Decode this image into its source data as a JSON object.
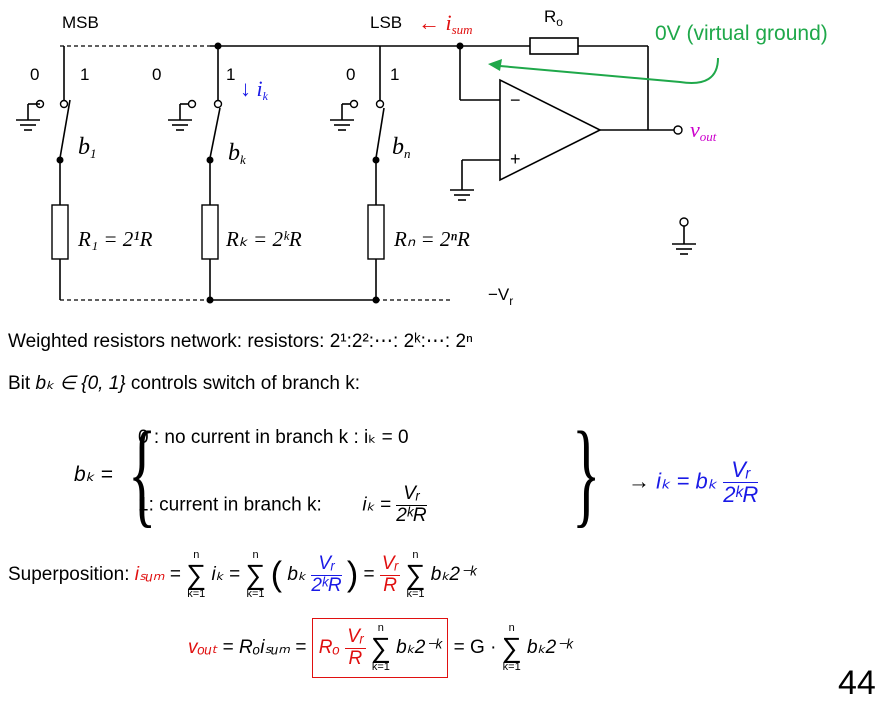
{
  "circuit": {
    "msb": "MSB",
    "lsb": "LSB",
    "i_sum_label": "← i",
    "i_sum_sub": "sum",
    "r0": "R",
    "r0_sub": "o",
    "virtual_ground": "0V (virtual ground)",
    "zero": "0",
    "one": "1",
    "ik_arrow": "↓ i",
    "ik_sub": "k",
    "b1": "b",
    "b1_sub": "1",
    "bk": "b",
    "bk_sub": "k",
    "bn": "b",
    "bn_sub": "n",
    "R1": "R₁ = 2¹R",
    "Rk": "Rₖ = 2ᵏR",
    "Rn": "Rₙ = 2ⁿR",
    "minus": "−",
    "plus": "+",
    "vout": "v",
    "vout_sub": "out",
    "vr": "−V",
    "vr_sub": "r"
  },
  "text": {
    "line1": "Weighted resistors network: resistors: 2¹:2²:⋯: 2ᵏ:⋯: 2ⁿ",
    "line2_a": "Bit ",
    "line2_b": "bₖ ∈ {0, 1}",
    "line2_c": " controls switch of branch k:",
    "bk_eq": "bₖ =",
    "case0": "0 : no current in branch k : iₖ = 0",
    "case1_a": "1:  current in branch k:",
    "case1_b": "iₖ =",
    "Vr": "Vᵣ",
    "den": "2ᵏR",
    "implies": "→",
    "ik_res": "iₖ = bₖ",
    "superposition": "Superposition: ",
    "isum": "iₛᵤₘ",
    "eq": "=",
    "sum_top": "n",
    "sum_bot": "k=1",
    "ik": "iₖ",
    "bk_open": "bₖ",
    "vr_over_r": "Vᵣ",
    "R": "R",
    "bk2k": "bₖ2⁻ᵏ",
    "vout": "vₒᵤₜ",
    "r0isum": "Rₒiₛᵤₘ",
    "r0": "Rₒ",
    "g": "G ·",
    "page_number": "44"
  }
}
